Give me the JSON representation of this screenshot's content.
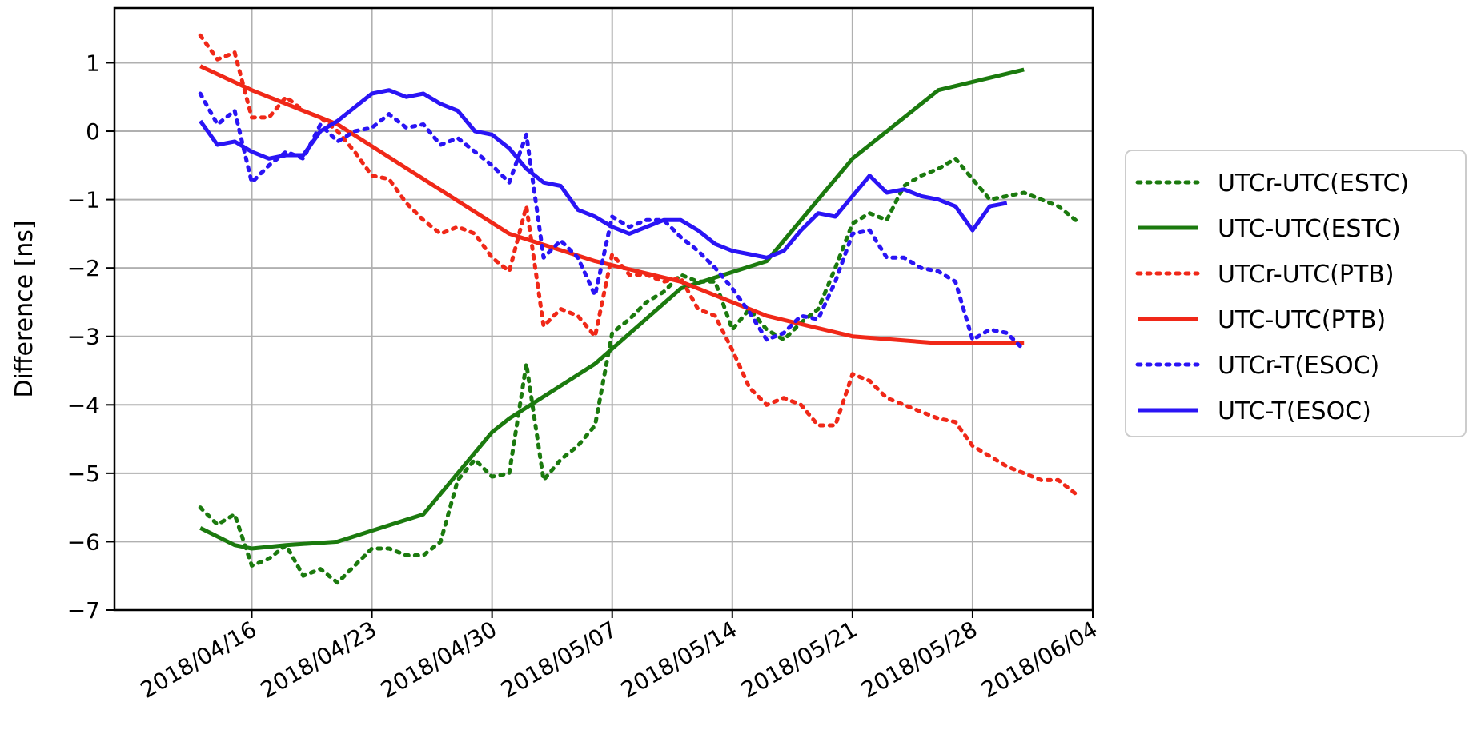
{
  "chart_data": {
    "type": "line",
    "title": "",
    "xlabel": "",
    "ylabel": "Difference [ns]",
    "x_type": "date",
    "xlim": [
      "2018-04-08",
      "2018-06-04"
    ],
    "ylim": [
      -7,
      1.8
    ],
    "x_ticks": [
      "2018-04-16",
      "2018-04-23",
      "2018-04-30",
      "2018-05-07",
      "2018-05-14",
      "2018-05-21",
      "2018-05-28",
      "2018-06-04"
    ],
    "x_tick_labels": [
      "2018/04/16",
      "2018/04/23",
      "2018/04/30",
      "2018/05/07",
      "2018/05/14",
      "2018/05/21",
      "2018/05/28",
      "2018/06/04"
    ],
    "y_ticks": [
      -7,
      -6,
      -5,
      -4,
      -3,
      -2,
      -1,
      0,
      1
    ],
    "y_tick_labels": [
      "−7",
      "−6",
      "−5",
      "−4",
      "−3",
      "−2",
      "−1",
      "0",
      "1"
    ],
    "grid": true,
    "legend_position": "outside-right",
    "series": [
      {
        "name": "UTCr-UTC(ESTC)",
        "color": "#1b7a0e",
        "style": "dotted",
        "points": [
          [
            "2018-04-13",
            -5.5
          ],
          [
            "2018-04-14",
            -5.75
          ],
          [
            "2018-04-15",
            -5.6
          ],
          [
            "2018-04-16",
            -6.35
          ],
          [
            "2018-04-17",
            -6.25
          ],
          [
            "2018-04-18",
            -6.05
          ],
          [
            "2018-04-19",
            -6.5
          ],
          [
            "2018-04-20",
            -6.4
          ],
          [
            "2018-04-21",
            -6.6
          ],
          [
            "2018-04-22",
            -6.35
          ],
          [
            "2018-04-23",
            -6.1
          ],
          [
            "2018-04-24",
            -6.1
          ],
          [
            "2018-04-25",
            -6.2
          ],
          [
            "2018-04-26",
            -6.2
          ],
          [
            "2018-04-27",
            -6.0
          ],
          [
            "2018-04-28",
            -5.1
          ],
          [
            "2018-04-29",
            -4.8
          ],
          [
            "2018-04-30",
            -5.05
          ],
          [
            "2018-05-01",
            -5.0
          ],
          [
            "2018-05-02",
            -3.4
          ],
          [
            "2018-05-03",
            -5.1
          ],
          [
            "2018-05-04",
            -4.8
          ],
          [
            "2018-05-05",
            -4.6
          ],
          [
            "2018-05-06",
            -4.3
          ],
          [
            "2018-05-07",
            -2.95
          ],
          [
            "2018-05-08",
            -2.75
          ],
          [
            "2018-05-09",
            -2.5
          ],
          [
            "2018-05-10",
            -2.35
          ],
          [
            "2018-05-11",
            -2.1
          ],
          [
            "2018-05-12",
            -2.2
          ],
          [
            "2018-05-13",
            -2.2
          ],
          [
            "2018-05-14",
            -2.9
          ],
          [
            "2018-05-15",
            -2.6
          ],
          [
            "2018-05-16",
            -2.9
          ],
          [
            "2018-05-17",
            -3.05
          ],
          [
            "2018-05-18",
            -2.8
          ],
          [
            "2018-05-19",
            -2.6
          ],
          [
            "2018-05-20",
            -2.0
          ],
          [
            "2018-05-21",
            -1.35
          ],
          [
            "2018-05-22",
            -1.2
          ],
          [
            "2018-05-23",
            -1.3
          ],
          [
            "2018-05-24",
            -0.8
          ],
          [
            "2018-05-25",
            -0.65
          ],
          [
            "2018-05-26",
            -0.55
          ],
          [
            "2018-05-27",
            -0.4
          ],
          [
            "2018-05-28",
            -0.7
          ],
          [
            "2018-05-29",
            -1.0
          ],
          [
            "2018-05-30",
            -0.95
          ],
          [
            "2018-05-31",
            -0.9
          ],
          [
            "2018-06-01",
            -1.0
          ],
          [
            "2018-06-02",
            -1.1
          ],
          [
            "2018-06-03",
            -1.3
          ]
        ]
      },
      {
        "name": "UTC-UTC(ESTC)",
        "color": "#1b7a0e",
        "style": "solid",
        "points": [
          [
            "2018-04-13",
            -5.8
          ],
          [
            "2018-04-15",
            -6.05
          ],
          [
            "2018-04-16",
            -6.1
          ],
          [
            "2018-04-18",
            -6.05
          ],
          [
            "2018-04-21",
            -6.0
          ],
          [
            "2018-04-26",
            -5.6
          ],
          [
            "2018-04-30",
            -4.4
          ],
          [
            "2018-05-01",
            -4.2
          ],
          [
            "2018-05-06",
            -3.4
          ],
          [
            "2018-05-11",
            -2.3
          ],
          [
            "2018-05-16",
            -1.9
          ],
          [
            "2018-05-21",
            -0.4
          ],
          [
            "2018-05-26",
            0.6
          ],
          [
            "2018-05-31",
            0.9
          ]
        ]
      },
      {
        "name": "UTCr-UTC(PTB)",
        "color": "#f02818",
        "style": "dotted",
        "points": [
          [
            "2018-04-13",
            1.4
          ],
          [
            "2018-04-14",
            1.05
          ],
          [
            "2018-04-15",
            1.15
          ],
          [
            "2018-04-16",
            0.2
          ],
          [
            "2018-04-17",
            0.2
          ],
          [
            "2018-04-18",
            0.5
          ],
          [
            "2018-04-19",
            0.3
          ],
          [
            "2018-04-20",
            0.2
          ],
          [
            "2018-04-21",
            0.0
          ],
          [
            "2018-04-22",
            -0.3
          ],
          [
            "2018-04-23",
            -0.65
          ],
          [
            "2018-04-24",
            -0.7
          ],
          [
            "2018-04-25",
            -1.05
          ],
          [
            "2018-04-26",
            -1.3
          ],
          [
            "2018-04-27",
            -1.5
          ],
          [
            "2018-04-28",
            -1.4
          ],
          [
            "2018-04-29",
            -1.5
          ],
          [
            "2018-04-30",
            -1.85
          ],
          [
            "2018-05-01",
            -2.05
          ],
          [
            "2018-05-02",
            -1.1
          ],
          [
            "2018-05-03",
            -2.85
          ],
          [
            "2018-05-04",
            -2.6
          ],
          [
            "2018-05-05",
            -2.7
          ],
          [
            "2018-05-06",
            -3.0
          ],
          [
            "2018-05-07",
            -1.8
          ],
          [
            "2018-05-08",
            -2.1
          ],
          [
            "2018-05-09",
            -2.1
          ],
          [
            "2018-05-10",
            -2.2
          ],
          [
            "2018-05-11",
            -2.15
          ],
          [
            "2018-05-12",
            -2.6
          ],
          [
            "2018-05-13",
            -2.7
          ],
          [
            "2018-05-14",
            -3.2
          ],
          [
            "2018-05-15",
            -3.75
          ],
          [
            "2018-05-16",
            -4.0
          ],
          [
            "2018-05-17",
            -3.9
          ],
          [
            "2018-05-18",
            -4.0
          ],
          [
            "2018-05-19",
            -4.3
          ],
          [
            "2018-05-20",
            -4.3
          ],
          [
            "2018-05-21",
            -3.55
          ],
          [
            "2018-05-22",
            -3.65
          ],
          [
            "2018-05-23",
            -3.9
          ],
          [
            "2018-05-24",
            -4.0
          ],
          [
            "2018-05-25",
            -4.1
          ],
          [
            "2018-05-26",
            -4.2
          ],
          [
            "2018-05-27",
            -4.25
          ],
          [
            "2018-05-28",
            -4.6
          ],
          [
            "2018-05-29",
            -4.75
          ],
          [
            "2018-05-30",
            -4.9
          ],
          [
            "2018-05-31",
            -5.0
          ],
          [
            "2018-06-01",
            -5.1
          ],
          [
            "2018-06-02",
            -5.1
          ],
          [
            "2018-06-03",
            -5.3
          ]
        ]
      },
      {
        "name": "UTC-UTC(PTB)",
        "color": "#f02818",
        "style": "solid",
        "points": [
          [
            "2018-04-13",
            0.95
          ],
          [
            "2018-04-16",
            0.6
          ],
          [
            "2018-04-21",
            0.1
          ],
          [
            "2018-04-26",
            -0.7
          ],
          [
            "2018-05-01",
            -1.5
          ],
          [
            "2018-05-06",
            -1.9
          ],
          [
            "2018-05-11",
            -2.2
          ],
          [
            "2018-05-16",
            -2.7
          ],
          [
            "2018-05-21",
            -3.0
          ],
          [
            "2018-05-26",
            -3.1
          ],
          [
            "2018-05-31",
            -3.1
          ]
        ]
      },
      {
        "name": "UTCr-T(ESOC)",
        "color": "#2a14f5",
        "style": "dotted",
        "points": [
          [
            "2018-04-13",
            0.55
          ],
          [
            "2018-04-14",
            0.1
          ],
          [
            "2018-04-15",
            0.3
          ],
          [
            "2018-04-16",
            -0.75
          ],
          [
            "2018-04-17",
            -0.5
          ],
          [
            "2018-04-18",
            -0.3
          ],
          [
            "2018-04-19",
            -0.4
          ],
          [
            "2018-04-20",
            0.1
          ],
          [
            "2018-04-21",
            -0.15
          ],
          [
            "2018-04-22",
            0.0
          ],
          [
            "2018-04-23",
            0.05
          ],
          [
            "2018-04-24",
            0.25
          ],
          [
            "2018-04-25",
            0.05
          ],
          [
            "2018-04-26",
            0.1
          ],
          [
            "2018-04-27",
            -0.2
          ],
          [
            "2018-04-28",
            -0.1
          ],
          [
            "2018-04-29",
            -0.3
          ],
          [
            "2018-04-30",
            -0.5
          ],
          [
            "2018-05-01",
            -0.75
          ],
          [
            "2018-05-02",
            -0.05
          ],
          [
            "2018-05-03",
            -1.85
          ],
          [
            "2018-05-04",
            -1.6
          ],
          [
            "2018-05-05",
            -1.85
          ],
          [
            "2018-05-06",
            -2.4
          ],
          [
            "2018-05-07",
            -1.25
          ],
          [
            "2018-05-08",
            -1.4
          ],
          [
            "2018-05-09",
            -1.3
          ],
          [
            "2018-05-10",
            -1.3
          ],
          [
            "2018-05-11",
            -1.55
          ],
          [
            "2018-05-12",
            -1.75
          ],
          [
            "2018-05-13",
            -2.0
          ],
          [
            "2018-05-14",
            -2.3
          ],
          [
            "2018-05-15",
            -2.65
          ],
          [
            "2018-05-16",
            -3.05
          ],
          [
            "2018-05-17",
            -2.95
          ],
          [
            "2018-05-18",
            -2.7
          ],
          [
            "2018-05-19",
            -2.75
          ],
          [
            "2018-05-20",
            -2.2
          ],
          [
            "2018-05-21",
            -1.5
          ],
          [
            "2018-05-22",
            -1.45
          ],
          [
            "2018-05-23",
            -1.85
          ],
          [
            "2018-05-24",
            -1.85
          ],
          [
            "2018-05-25",
            -2.0
          ],
          [
            "2018-05-26",
            -2.05
          ],
          [
            "2018-05-27",
            -2.2
          ],
          [
            "2018-05-28",
            -3.05
          ],
          [
            "2018-05-29",
            -2.9
          ],
          [
            "2018-05-30",
            -2.95
          ],
          [
            "2018-05-31",
            -3.2
          ]
        ]
      },
      {
        "name": "UTC-T(ESOC)",
        "color": "#2a14f5",
        "style": "solid",
        "points": [
          [
            "2018-04-13",
            0.15
          ],
          [
            "2018-04-14",
            -0.2
          ],
          [
            "2018-04-15",
            -0.15
          ],
          [
            "2018-04-16",
            -0.3
          ],
          [
            "2018-04-17",
            -0.4
          ],
          [
            "2018-04-18",
            -0.35
          ],
          [
            "2018-04-19",
            -0.35
          ],
          [
            "2018-04-20",
            0.0
          ],
          [
            "2018-04-21",
            0.15
          ],
          [
            "2018-04-22",
            0.35
          ],
          [
            "2018-04-23",
            0.55
          ],
          [
            "2018-04-24",
            0.6
          ],
          [
            "2018-04-25",
            0.5
          ],
          [
            "2018-04-26",
            0.55
          ],
          [
            "2018-04-27",
            0.4
          ],
          [
            "2018-04-28",
            0.3
          ],
          [
            "2018-04-29",
            0.0
          ],
          [
            "2018-04-30",
            -0.05
          ],
          [
            "2018-05-01",
            -0.25
          ],
          [
            "2018-05-02",
            -0.55
          ],
          [
            "2018-05-03",
            -0.75
          ],
          [
            "2018-05-04",
            -0.8
          ],
          [
            "2018-05-05",
            -1.15
          ],
          [
            "2018-05-06",
            -1.25
          ],
          [
            "2018-05-07",
            -1.4
          ],
          [
            "2018-05-08",
            -1.5
          ],
          [
            "2018-05-09",
            -1.4
          ],
          [
            "2018-05-10",
            -1.3
          ],
          [
            "2018-05-11",
            -1.3
          ],
          [
            "2018-05-12",
            -1.45
          ],
          [
            "2018-05-13",
            -1.65
          ],
          [
            "2018-05-14",
            -1.75
          ],
          [
            "2018-05-15",
            -1.8
          ],
          [
            "2018-05-16",
            -1.85
          ],
          [
            "2018-05-17",
            -1.75
          ],
          [
            "2018-05-18",
            -1.45
          ],
          [
            "2018-05-19",
            -1.2
          ],
          [
            "2018-05-20",
            -1.25
          ],
          [
            "2018-05-21",
            -0.95
          ],
          [
            "2018-05-22",
            -0.65
          ],
          [
            "2018-05-23",
            -0.9
          ],
          [
            "2018-05-24",
            -0.85
          ],
          [
            "2018-05-25",
            -0.95
          ],
          [
            "2018-05-26",
            -1.0
          ],
          [
            "2018-05-27",
            -1.1
          ],
          [
            "2018-05-28",
            -1.45
          ],
          [
            "2018-05-29",
            -1.1
          ],
          [
            "2018-05-30",
            -1.05
          ]
        ]
      }
    ]
  }
}
